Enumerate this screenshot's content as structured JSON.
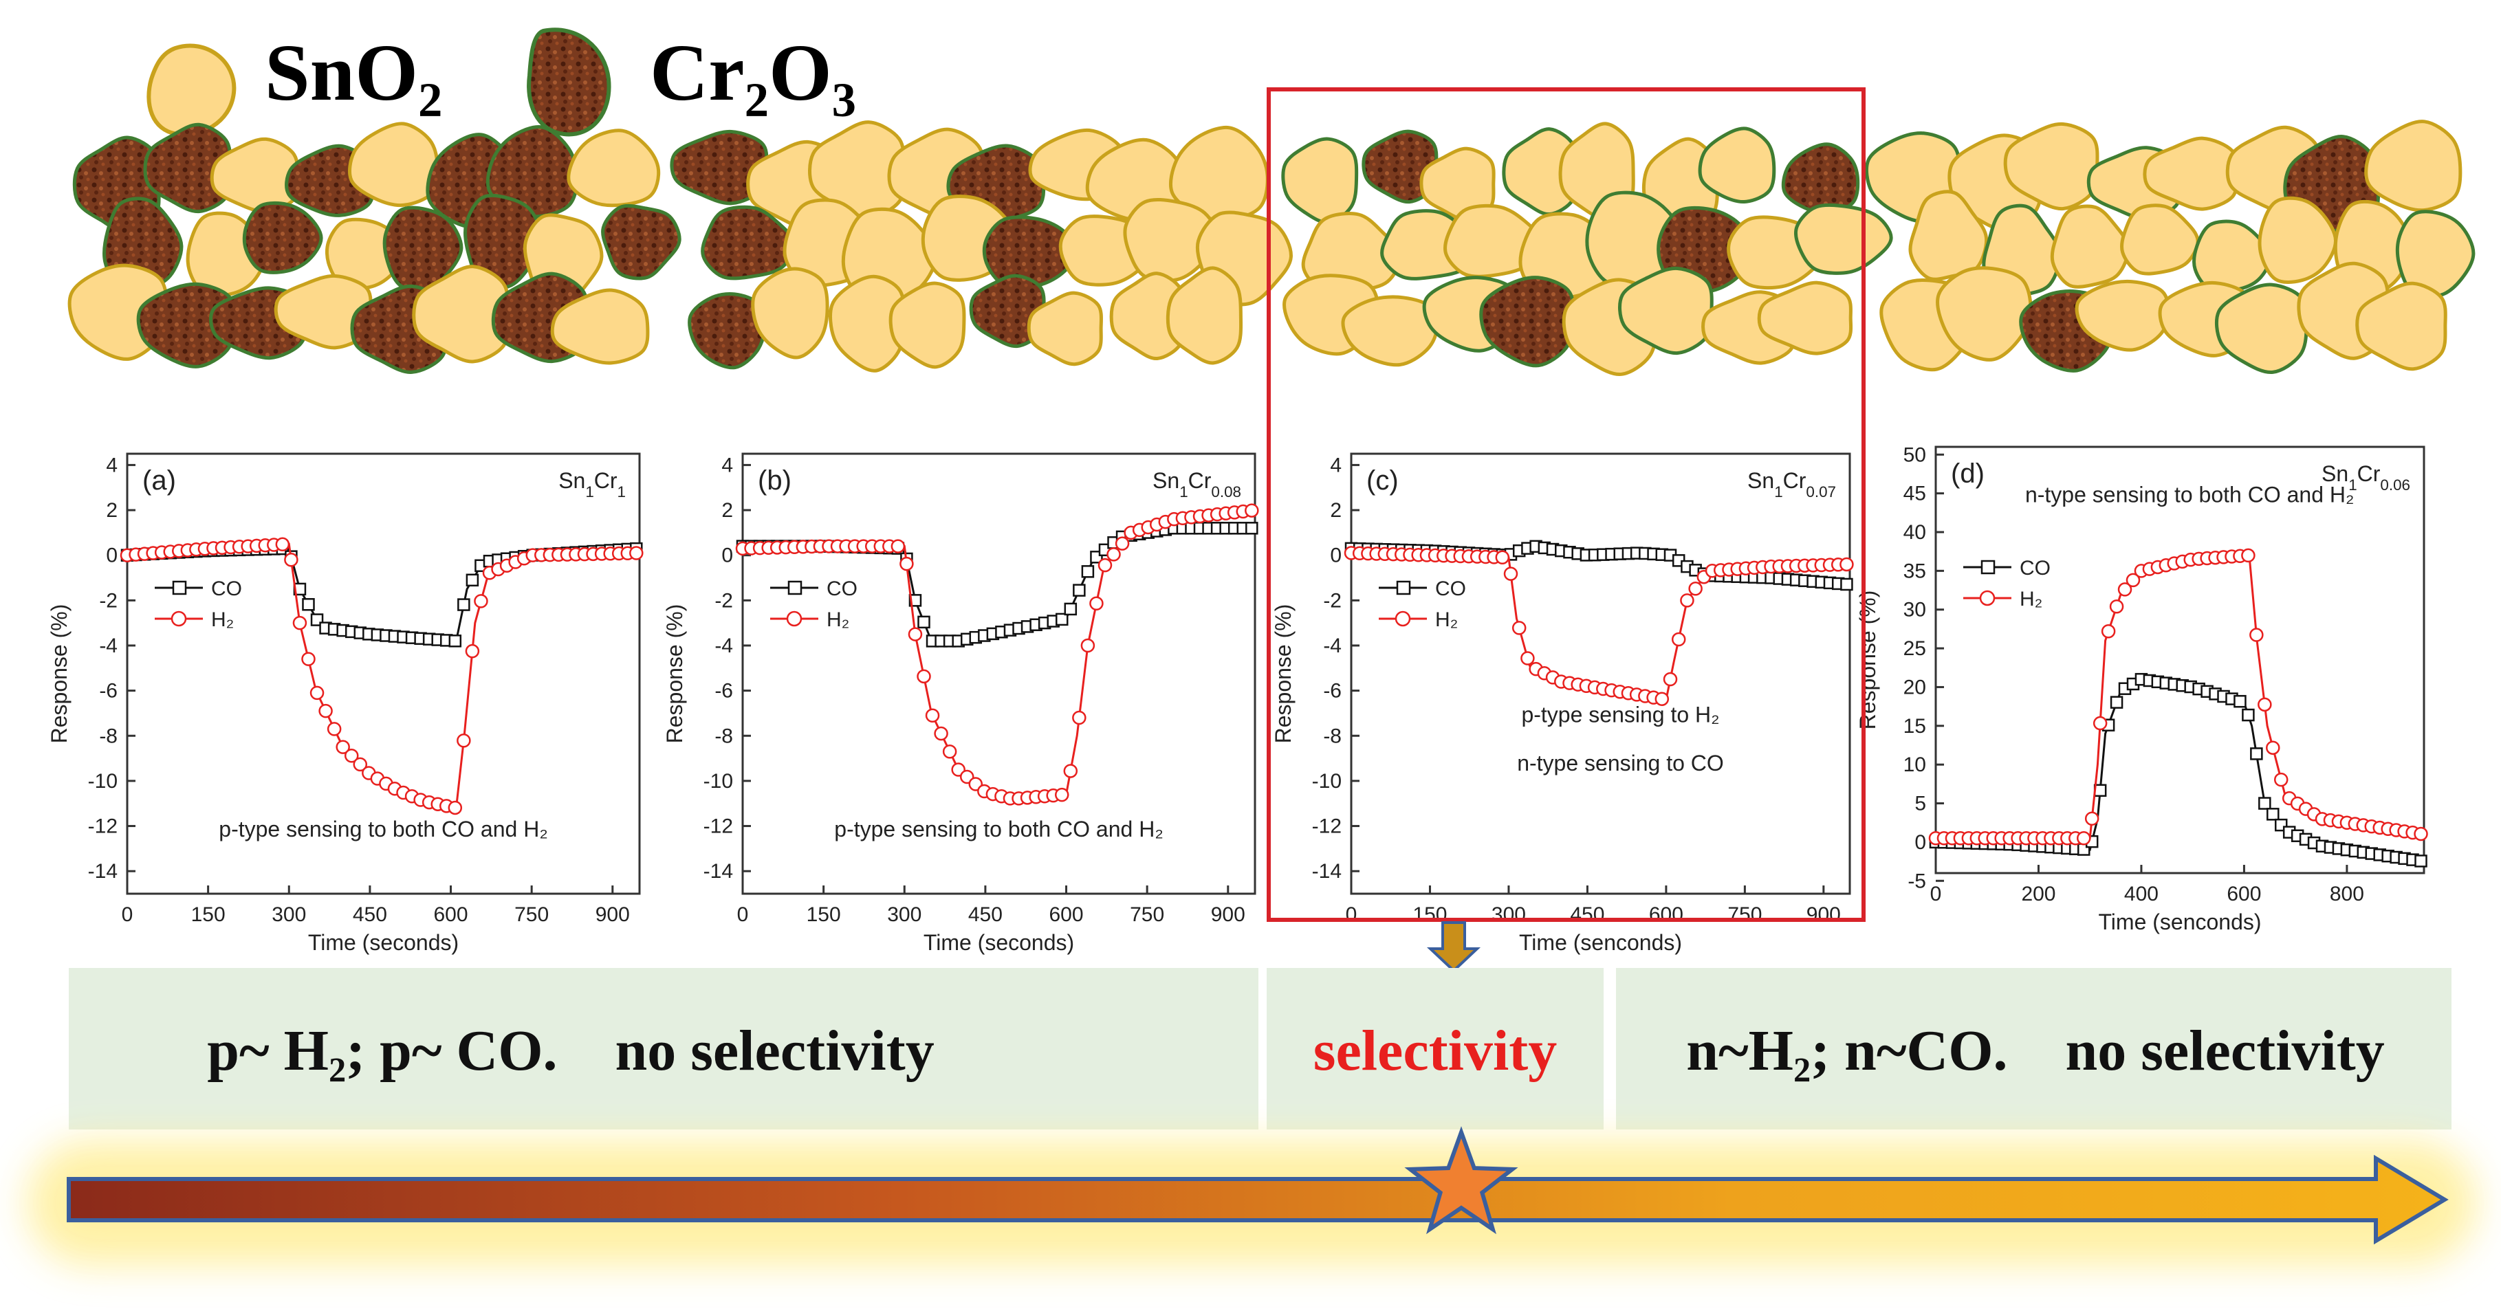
{
  "legend": {
    "sno2_label": "SnO₂",
    "cr2o3_label": "Cr₂O₃",
    "sno2_fill": "#fdd98a",
    "sno2_edge": "#c9a21c",
    "cr2o3_fill": "#7a3a1e",
    "cr2o3_edge": "#3f7d32"
  },
  "banners": [
    {
      "text": "p~ H₂; p~ CO.    no selectivity",
      "color": "#111111"
    },
    {
      "text": "selectivity",
      "color": "#e8201e"
    },
    {
      "text": "n~H₂; n~CO.    no selectivity",
      "color": "#111111"
    }
  ],
  "colors": {
    "co": "#111111",
    "h2": "#e8201e",
    "highlight_box": "#d8232a",
    "banner_bg": "#e4efe0",
    "arrow_start": "#8b2a1a",
    "arrow_end": "#f5b21a",
    "glow": "#fff3a0",
    "star_fill": "#f08030",
    "star_edge": "#3a5f9e",
    "down_arrow": "#c98f1a"
  },
  "chart_data": [
    {
      "type": "line",
      "panel": "(a)",
      "sample": "Sn1Cr1",
      "sample_base": "Sn",
      "sample_sub1": "1",
      "sample_mid": "Cr",
      "sample_sub2": "1",
      "xlabel": "Time (seconds)",
      "ylabel": "Response (%)",
      "xlim": [
        0,
        950
      ],
      "ylim": [
        -15,
        4.5
      ],
      "xticks": [
        0,
        150,
        300,
        450,
        600,
        750,
        900
      ],
      "yticks": [
        4,
        2,
        0,
        -2,
        -4,
        -6,
        -8,
        -10,
        -12,
        -14
      ],
      "legend": [
        "CO",
        "H₂"
      ],
      "annotation": [
        "p-type sensing to both CO and H₂"
      ],
      "series": [
        {
          "name": "CO",
          "points": [
            [
              0,
              0
            ],
            [
              150,
              0.2
            ],
            [
              300,
              0.3
            ],
            [
              320,
              -1.5
            ],
            [
              360,
              -3.2
            ],
            [
              450,
              -3.5
            ],
            [
              550,
              -3.7
            ],
            [
              610,
              -3.8
            ],
            [
              630,
              -1.5
            ],
            [
              660,
              -0.3
            ],
            [
              750,
              0
            ],
            [
              950,
              0.3
            ]
          ]
        },
        {
          "name": "H₂",
          "points": [
            [
              0,
              0
            ],
            [
              150,
              0.3
            ],
            [
              300,
              0.5
            ],
            [
              320,
              -3
            ],
            [
              350,
              -6
            ],
            [
              400,
              -8.5
            ],
            [
              450,
              -9.7
            ],
            [
              500,
              -10.4
            ],
            [
              550,
              -10.9
            ],
            [
              610,
              -11.2
            ],
            [
              625,
              -8
            ],
            [
              645,
              -3
            ],
            [
              670,
              -0.8
            ],
            [
              750,
              0
            ],
            [
              950,
              0.1
            ]
          ]
        }
      ]
    },
    {
      "type": "line",
      "panel": "(b)",
      "sample": "Sn1Cr0.08",
      "sample_base": "Sn",
      "sample_sub1": "1",
      "sample_mid": "Cr",
      "sample_sub2": "0.08",
      "xlabel": "Time (seconds)",
      "ylabel": "Response (%)",
      "xlim": [
        0,
        950
      ],
      "ylim": [
        -15,
        4.5
      ],
      "xticks": [
        0,
        150,
        300,
        450,
        600,
        750,
        900
      ],
      "yticks": [
        4,
        2,
        0,
        -2,
        -4,
        -6,
        -8,
        -10,
        -12,
        -14
      ],
      "legend": [
        "CO",
        "H₂"
      ],
      "annotation": [
        "p-type sensing to both CO and H₂"
      ],
      "series": [
        {
          "name": "CO",
          "points": [
            [
              0,
              0.4
            ],
            [
              150,
              0.4
            ],
            [
              300,
              0.3
            ],
            [
              320,
              -2
            ],
            [
              350,
              -3.8
            ],
            [
              400,
              -3.8
            ],
            [
              500,
              -3.3
            ],
            [
              600,
              -2.8
            ],
            [
              625,
              -1.5
            ],
            [
              650,
              -0.2
            ],
            [
              700,
              0.8
            ],
            [
              800,
              1.2
            ],
            [
              950,
              1.2
            ]
          ]
        },
        {
          "name": "H₂",
          "points": [
            [
              0,
              0.3
            ],
            [
              150,
              0.4
            ],
            [
              300,
              0.4
            ],
            [
              320,
              -3.5
            ],
            [
              350,
              -7
            ],
            [
              400,
              -9.5
            ],
            [
              450,
              -10.5
            ],
            [
              500,
              -10.8
            ],
            [
              600,
              -10.6
            ],
            [
              620,
              -8
            ],
            [
              640,
              -4
            ],
            [
              670,
              -0.5
            ],
            [
              720,
              1
            ],
            [
              800,
              1.6
            ],
            [
              950,
              2
            ]
          ]
        }
      ]
    },
    {
      "type": "line",
      "panel": "(c)",
      "sample": "Sn1Cr0.07",
      "sample_base": "Sn",
      "sample_sub1": "1",
      "sample_mid": "Cr",
      "sample_sub2": "0.07",
      "xlabel": "Time (senconds)",
      "ylabel": "Response (%)",
      "xlim": [
        0,
        950
      ],
      "ylim": [
        -15,
        4.5
      ],
      "xticks": [
        0,
        150,
        300,
        450,
        600,
        750,
        900
      ],
      "yticks": [
        4,
        2,
        0,
        -2,
        -4,
        -6,
        -8,
        -10,
        -12,
        -14
      ],
      "legend": [
        "CO",
        "H₂"
      ],
      "annotation": [
        "p-type sensing to  H₂",
        "n-type sensing to CO"
      ],
      "series": [
        {
          "name": "CO",
          "points": [
            [
              0,
              0.3
            ],
            [
              150,
              0.2
            ],
            [
              300,
              0
            ],
            [
              320,
              0.2
            ],
            [
              350,
              0.4
            ],
            [
              450,
              0
            ],
            [
              550,
              0.1
            ],
            [
              610,
              0
            ],
            [
              640,
              -0.5
            ],
            [
              680,
              -0.9
            ],
            [
              800,
              -1
            ],
            [
              950,
              -1.3
            ]
          ]
        },
        {
          "name": "H₂",
          "points": [
            [
              0,
              0.1
            ],
            [
              150,
              0
            ],
            [
              300,
              -0.1
            ],
            [
              315,
              -2.8
            ],
            [
              340,
              -4.9
            ],
            [
              400,
              -5.6
            ],
            [
              500,
              -6
            ],
            [
              600,
              -6.4
            ],
            [
              615,
              -4.7
            ],
            [
              640,
              -2
            ],
            [
              680,
              -0.7
            ],
            [
              800,
              -0.5
            ],
            [
              950,
              -0.4
            ]
          ]
        }
      ]
    },
    {
      "type": "line",
      "panel": "(d)",
      "sample": "Sn1Cr0.06",
      "sample_base": "Sn",
      "sample_sub1": "1",
      "sample_mid": "Cr",
      "sample_sub2": "0.06",
      "xlabel": "Time (senconds)",
      "ylabel": "Response (%)",
      "xlim": [
        0,
        950
      ],
      "ylim": [
        -4,
        51
      ],
      "xticks": [
        0,
        200,
        400,
        600,
        800
      ],
      "yticks": [
        50,
        45,
        40,
        35,
        30,
        25,
        20,
        15,
        10,
        5,
        0,
        -5
      ],
      "legend": [
        "CO",
        "H₂"
      ],
      "annotation": [
        "n-type sensing to both CO and H₂"
      ],
      "series": [
        {
          "name": "CO",
          "points": [
            [
              0,
              0
            ],
            [
              150,
              -0.3
            ],
            [
              300,
              -1
            ],
            [
              315,
              3
            ],
            [
              330,
              14
            ],
            [
              360,
              19.5
            ],
            [
              400,
              21
            ],
            [
              500,
              20
            ],
            [
              600,
              18
            ],
            [
              615,
              15
            ],
            [
              640,
              5
            ],
            [
              680,
              1.5
            ],
            [
              750,
              -0.5
            ],
            [
              950,
              -2.5
            ]
          ]
        },
        {
          "name": "H₂",
          "points": [
            [
              0,
              0.5
            ],
            [
              150,
              0.5
            ],
            [
              300,
              0.5
            ],
            [
              315,
              10
            ],
            [
              330,
              26
            ],
            [
              360,
              32
            ],
            [
              400,
              35
            ],
            [
              500,
              36.5
            ],
            [
              610,
              37
            ],
            [
              625,
              26
            ],
            [
              645,
              15
            ],
            [
              680,
              6
            ],
            [
              750,
              3
            ],
            [
              950,
              1
            ]
          ]
        }
      ]
    }
  ]
}
